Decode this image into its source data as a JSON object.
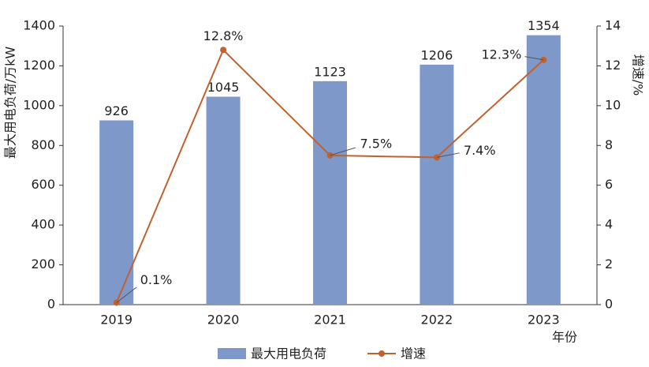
{
  "chart_data": {
    "type": "combo",
    "categories": [
      "2019",
      "2020",
      "2021",
      "2022",
      "2023"
    ],
    "series": [
      {
        "name": "最大用电负荷",
        "type": "bar",
        "color": "#7d98c9",
        "values": [
          926,
          1045,
          1123,
          1206,
          1354
        ]
      },
      {
        "name": "增速",
        "type": "line",
        "axis": "y2",
        "color": "#c0622f",
        "values": [
          0.1,
          12.8,
          7.5,
          7.4,
          12.3
        ],
        "value_labels": [
          "0.1%",
          "12.8%",
          "7.5%",
          "7.4%",
          "12.3%"
        ]
      }
    ],
    "ylabel": "最大用电负荷/万kW",
    "y2label": "增速/%",
    "xlabel": "年份",
    "ylim": [
      0,
      1400
    ],
    "yticks": [
      0,
      200,
      400,
      600,
      800,
      1000,
      1200,
      1400
    ],
    "y2lim": [
      0,
      14
    ],
    "y2ticks": [
      0,
      2,
      4,
      6,
      8,
      10,
      12,
      14
    ],
    "grid": false
  }
}
